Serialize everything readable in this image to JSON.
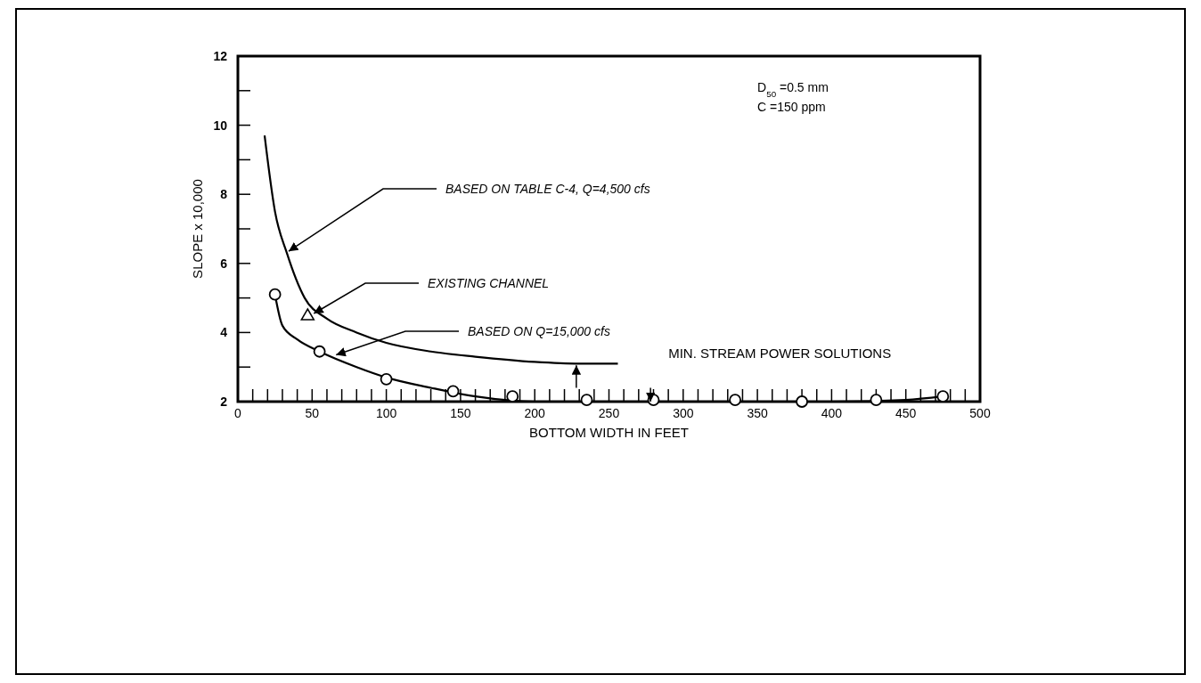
{
  "chart_data": {
    "type": "line",
    "xlabel": "BOTTOM WIDTH IN FEET",
    "ylabel": "SLOPE x 10,000",
    "xlim": [
      0,
      500
    ],
    "ylim": [
      2,
      12
    ],
    "xticks": [
      0,
      {
        "value": 10,
        "label": null
      },
      {
        "value": 20,
        "label": null
      },
      {
        "value": 30,
        "label": null
      },
      {
        "value": 40,
        "label": null
      },
      50,
      {
        "value": 60,
        "label": null
      },
      {
        "value": 70,
        "label": null
      },
      {
        "value": 80,
        "label": null
      },
      {
        "value": 90,
        "label": null
      },
      100,
      {
        "value": 110,
        "label": null
      },
      {
        "value": 120,
        "label": null
      },
      {
        "value": 130,
        "label": null
      },
      {
        "value": 140,
        "label": null
      },
      150,
      {
        "value": 160,
        "label": null
      },
      {
        "value": 170,
        "label": null
      },
      {
        "value": 180,
        "label": null
      },
      {
        "value": 190,
        "label": null
      },
      200,
      {
        "value": 210,
        "label": null
      },
      {
        "value": 220,
        "label": null
      },
      {
        "value": 230,
        "label": null
      },
      {
        "value": 240,
        "label": null
      },
      250,
      {
        "value": 260,
        "label": null
      },
      {
        "value": 270,
        "label": null
      },
      {
        "value": 280,
        "label": null
      },
      {
        "value": 290,
        "label": null
      },
      300,
      {
        "value": 310,
        "label": null
      },
      {
        "value": 320,
        "label": null
      },
      {
        "value": 330,
        "label": null
      },
      {
        "value": 340,
        "label": null
      },
      350,
      {
        "value": 360,
        "label": null
      },
      {
        "value": 370,
        "label": null
      },
      {
        "value": 380,
        "label": null
      },
      {
        "value": 390,
        "label": null
      },
      400,
      {
        "value": 410,
        "label": null
      },
      {
        "value": 420,
        "label": null
      },
      {
        "value": 430,
        "label": null
      },
      {
        "value": 440,
        "label": null
      },
      450,
      {
        "value": 460,
        "label": null
      },
      {
        "value": 470,
        "label": null
      },
      {
        "value": 480,
        "label": null
      },
      {
        "value": 490,
        "label": null
      },
      500
    ],
    "yticks": [
      2,
      {
        "value": 3,
        "label": null
      },
      4,
      {
        "value": 5,
        "label": null
      },
      6,
      {
        "value": 7,
        "label": null
      },
      8,
      {
        "value": 9,
        "label": null
      },
      10,
      {
        "value": 11,
        "label": null
      },
      12
    ],
    "series": [
      {
        "color": "#000000",
        "x": [
          18,
          25,
          33,
          45,
          60,
          80,
          100,
          130,
          160,
          200,
          230,
          256
        ],
        "values": [
          9.7,
          7.5,
          6.3,
          5.0,
          4.4,
          4.0,
          3.7,
          3.45,
          3.3,
          3.15,
          3.1,
          3.1
        ]
      },
      {
        "color": "#000000",
        "x": [
          25,
          30,
          40,
          55,
          80,
          100,
          130,
          160,
          200,
          250,
          300,
          350,
          400,
          450,
          475
        ],
        "values": [
          5.1,
          4.2,
          3.8,
          3.45,
          3.0,
          2.7,
          2.4,
          2.15,
          2.0,
          2.0,
          2.0,
          2.0,
          2.0,
          2.05,
          2.15
        ]
      },
      {
        "type": "scatter",
        "marker": "circle",
        "color": "#000000",
        "x": [
          25,
          55,
          100,
          145,
          185,
          235,
          280,
          335,
          380,
          430,
          475
        ],
        "values": [
          5.1,
          3.45,
          2.65,
          2.3,
          2.15,
          2.05,
          2.05,
          2.05,
          2.0,
          2.05,
          2.15
        ]
      },
      {
        "type": "scatter",
        "marker": "triangle",
        "color": "#000000",
        "x": [
          47
        ],
        "values": [
          4.5
        ]
      }
    ],
    "annotations": [
      {
        "text": "BASED ON TABLE C-4, Q=4,500 cfs",
        "x": 33,
        "y": 6.3
      },
      {
        "text": "EXISTING CHANNEL",
        "x": 50,
        "y": 4.5
      },
      {
        "text": "BASED ON Q=15,000 cfs",
        "x": 65,
        "y": 3.3
      },
      "MIN. STREAM POWER SOLUTIONS",
      "D$_{50}$ =0.5 mm",
      "C   =150 ppm"
    ]
  }
}
